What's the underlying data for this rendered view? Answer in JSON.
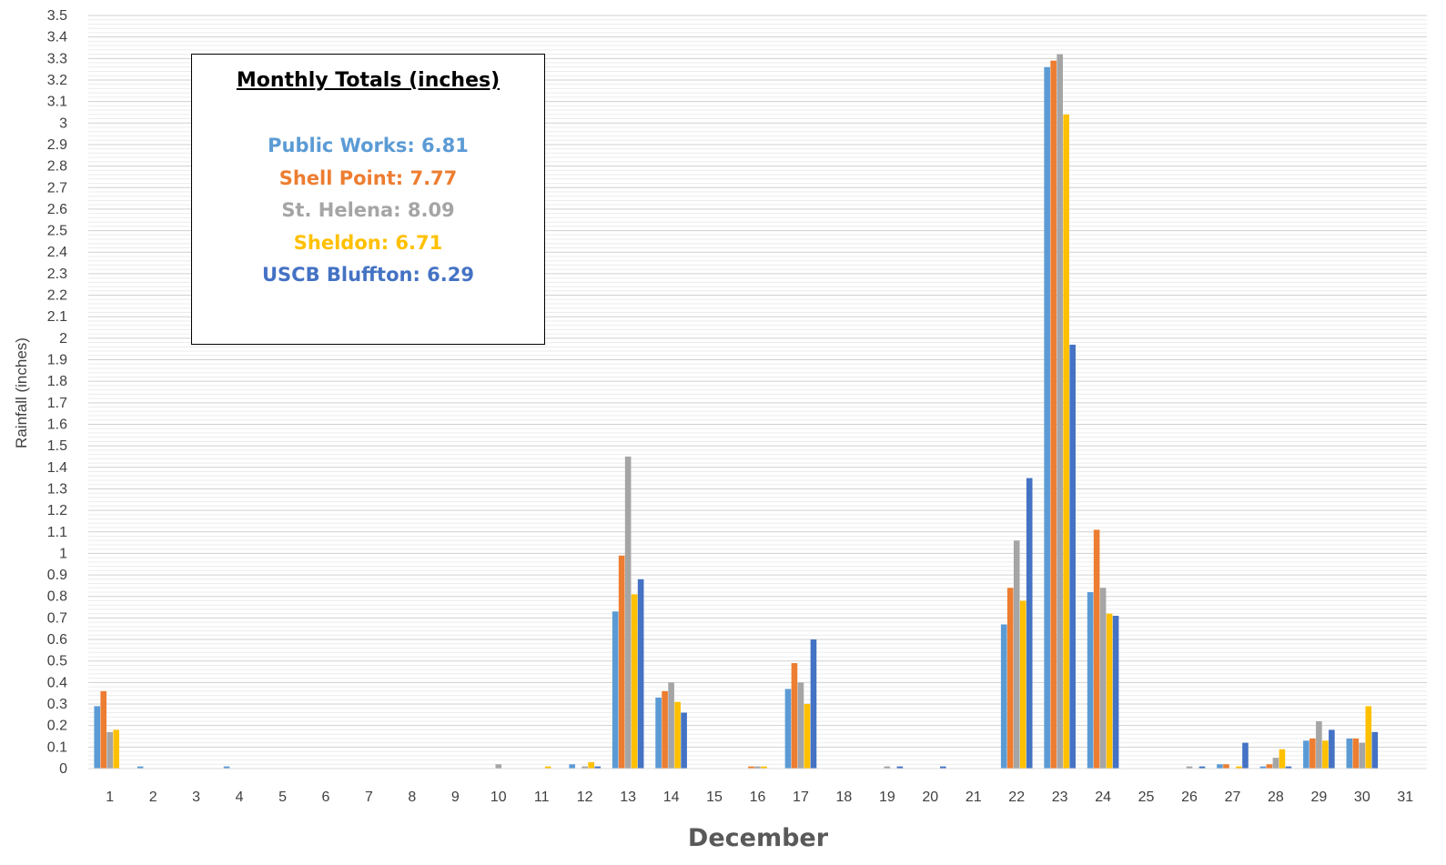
{
  "chart_data": {
    "type": "bar",
    "xlabel": "December",
    "ylabel": "Rainfall (inches)",
    "ylim": [
      0,
      3.5
    ],
    "y_major_step": 0.1,
    "grid": true,
    "categories": [
      "1",
      "2",
      "3",
      "4",
      "5",
      "6",
      "7",
      "8",
      "9",
      "10",
      "11",
      "12",
      "13",
      "14",
      "15",
      "16",
      "17",
      "18",
      "19",
      "20",
      "21",
      "22",
      "23",
      "24",
      "25",
      "26",
      "27",
      "28",
      "29",
      "30",
      "31"
    ],
    "series": [
      {
        "name": "Public Works",
        "color": "#5B9BD5",
        "values": [
          0.29,
          0.01,
          0,
          0.01,
          0,
          0,
          0,
          0,
          0,
          0,
          0,
          0.02,
          0.73,
          0.33,
          0,
          0,
          0.37,
          0,
          0,
          0,
          0,
          0.67,
          3.26,
          0.82,
          0,
          0,
          0.02,
          0.01,
          0.13,
          0.14,
          0
        ]
      },
      {
        "name": "Shell Point",
        "color": "#ED7D31",
        "values": [
          0.36,
          0,
          0,
          0,
          0,
          0,
          0,
          0,
          0,
          0,
          0,
          0,
          0.99,
          0.36,
          0,
          0.01,
          0.49,
          0,
          0,
          0,
          0,
          0.84,
          3.29,
          1.11,
          0,
          0,
          0.02,
          0.02,
          0.14,
          0.14,
          0
        ]
      },
      {
        "name": "St. Helena",
        "color": "#A5A5A5",
        "values": [
          0.17,
          0,
          0,
          0,
          0,
          0,
          0,
          0,
          0,
          0.02,
          0,
          0.01,
          1.45,
          0.4,
          0,
          0.01,
          0.4,
          0,
          0.01,
          0,
          0,
          1.06,
          3.32,
          0.84,
          0,
          0.01,
          0,
          0.05,
          0.22,
          0.12,
          0
        ]
      },
      {
        "name": "Sheldon",
        "color": "#FFC000",
        "values": [
          0.18,
          0,
          0,
          0,
          0,
          0,
          0,
          0,
          0,
          0,
          0.01,
          0.03,
          0.81,
          0.31,
          0,
          0.01,
          0.3,
          0,
          0,
          0,
          0,
          0.78,
          3.04,
          0.72,
          0,
          0,
          0.01,
          0.09,
          0.13,
          0.29,
          0
        ]
      },
      {
        "name": "USCB Bluffton",
        "color": "#4472C4",
        "values": [
          0,
          0,
          0,
          0,
          0,
          0,
          0,
          0,
          0,
          0,
          0,
          0.01,
          0.88,
          0.26,
          0,
          0,
          0.6,
          0,
          0.01,
          0.01,
          0,
          1.35,
          1.97,
          0.71,
          0,
          0.01,
          0.12,
          0.01,
          0.18,
          0.17,
          0
        ]
      }
    ]
  },
  "totals_box": {
    "title": "Monthly Totals (inches)",
    "rows": [
      {
        "text": "Public Works:  6.81",
        "color": "#5B9BD5"
      },
      {
        "text": "Shell Point:  7.77",
        "color": "#ED7D31"
      },
      {
        "text": "St. Helena:  8.09",
        "color": "#A5A5A5"
      },
      {
        "text": "Sheldon:  6.71",
        "color": "#FFC000"
      },
      {
        "text": "USCB Bluffton:  6.29",
        "color": "#4472C4"
      }
    ]
  }
}
